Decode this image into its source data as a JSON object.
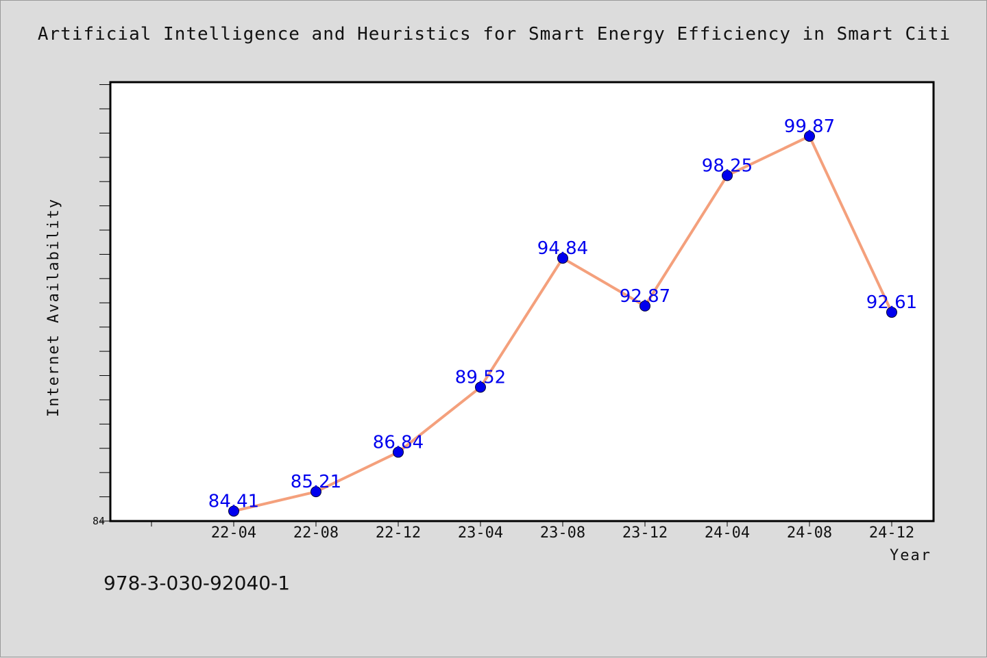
{
  "chart_data": {
    "type": "line",
    "title": "Artificial Intelligence and Heuristics for Smart Energy Efficiency in Smart Citi",
    "xlabel": "Year",
    "ylabel": "Internet Availability",
    "categories": [
      "22-04",
      "22-08",
      "22-12",
      "23-04",
      "23-08",
      "23-12",
      "24-04",
      "24-08",
      "24-12"
    ],
    "series": [
      {
        "values": [
          84.41,
          85.21,
          86.84,
          89.52,
          94.84,
          92.87,
          98.25,
          99.87,
          92.61
        ]
      }
    ],
    "data_labels": [
      "84.41",
      "85.21",
      "86.84",
      "89.52",
      "94.84",
      "92.87",
      "98.25",
      "99.87",
      "92.61"
    ],
    "ylim": [
      84,
      102.1
    ],
    "y_tick_labels": [
      "84"
    ],
    "grid": false,
    "line_color": "#f4a07c",
    "marker_color": "#0000ee",
    "label_color": "#0000ee"
  },
  "footer": {
    "code": "978-3-030-92040-1"
  }
}
